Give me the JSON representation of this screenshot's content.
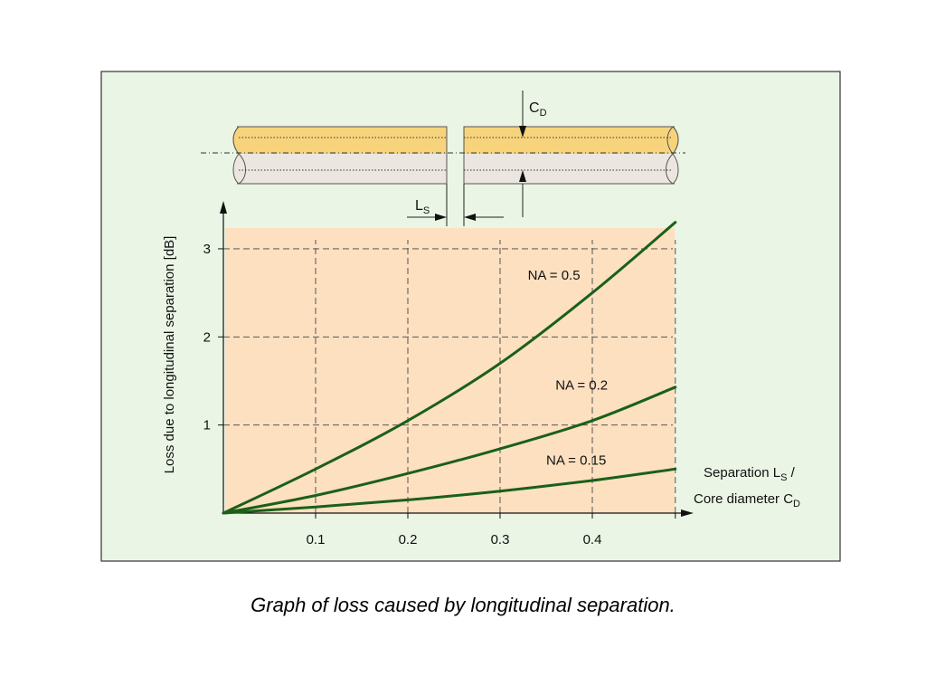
{
  "caption": "Graph of loss caused by longitudinal separation.",
  "colors": {
    "panel_bg": "#eaf5e5",
    "plot_bg": "#fde0c0",
    "curve": "#1a6019",
    "fiber_top": "#f7d47b",
    "fiber_bottom": "#ebe6df"
  },
  "diagram": {
    "cd_label": "C",
    "cd_sub": "D",
    "ls_label": "L",
    "ls_sub": "S"
  },
  "chart_data": {
    "type": "line",
    "title": "",
    "ylabel": "Loss due to longitudinal separation [dB]",
    "xlabel": {
      "line1_pre": "Separation L",
      "line1_sub": "S",
      "line1_post": " /",
      "line2_pre": "Core diameter C",
      "line2_sub": "D"
    },
    "xlim": [
      0,
      0.5
    ],
    "ylim": [
      0,
      3.4
    ],
    "xticks": [
      0.1,
      0.2,
      0.3,
      0.4
    ],
    "xtick_labels": [
      "0.1",
      "0.2",
      "0.3",
      "0.4"
    ],
    "yticks": [
      1,
      2,
      3
    ],
    "ytick_labels": [
      "1",
      "2",
      "3"
    ],
    "grid": true,
    "series": [
      {
        "name": "NA = 0.5",
        "x": [
          0,
          0.1,
          0.2,
          0.3,
          0.4,
          0.49
        ],
        "y": [
          0,
          0.5,
          1.05,
          1.7,
          2.5,
          3.3
        ]
      },
      {
        "name": "NA = 0.2",
        "x": [
          0,
          0.1,
          0.2,
          0.3,
          0.4,
          0.49
        ],
        "y": [
          0,
          0.2,
          0.45,
          0.73,
          1.05,
          1.43
        ]
      },
      {
        "name": "NA = 0.15",
        "x": [
          0,
          0.1,
          0.2,
          0.3,
          0.4,
          0.49
        ],
        "y": [
          0,
          0.07,
          0.15,
          0.25,
          0.37,
          0.5
        ]
      }
    ]
  }
}
